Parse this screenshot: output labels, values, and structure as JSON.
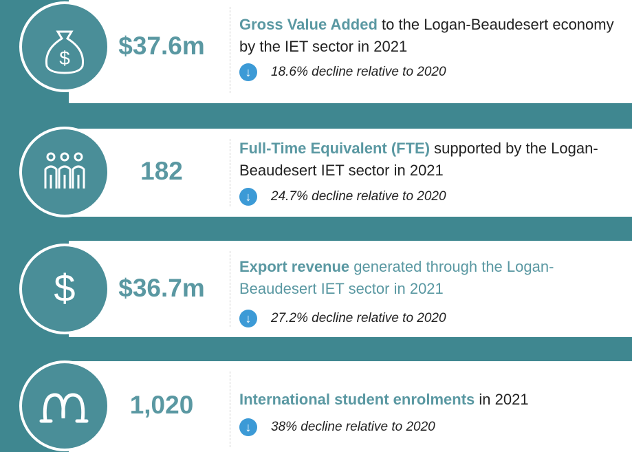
{
  "cards": [
    {
      "value": "$37.6m",
      "highlight": "Gross Value Added",
      "text": " to the Logan-Beaudesert economy by the IET sector in 2021",
      "change": "18.6% decline relative to 2020"
    },
    {
      "value": "182",
      "highlight": "Full-Time Equivalent (FTE)",
      "text": " supported by the Logan-Beaudesert IET sector in 2021",
      "change": "24.7% decline relative to 2020"
    },
    {
      "value": "$36.7m",
      "highlight": "Export revenue",
      "text": " generated through the Logan-Beaudesert IET sector in 2021",
      "change": "27.2% decline relative to 2020"
    },
    {
      "value": "1,020",
      "highlight": "International student enrolments",
      "text": " in 2021",
      "change": "38% decline relative to 2020"
    }
  ]
}
